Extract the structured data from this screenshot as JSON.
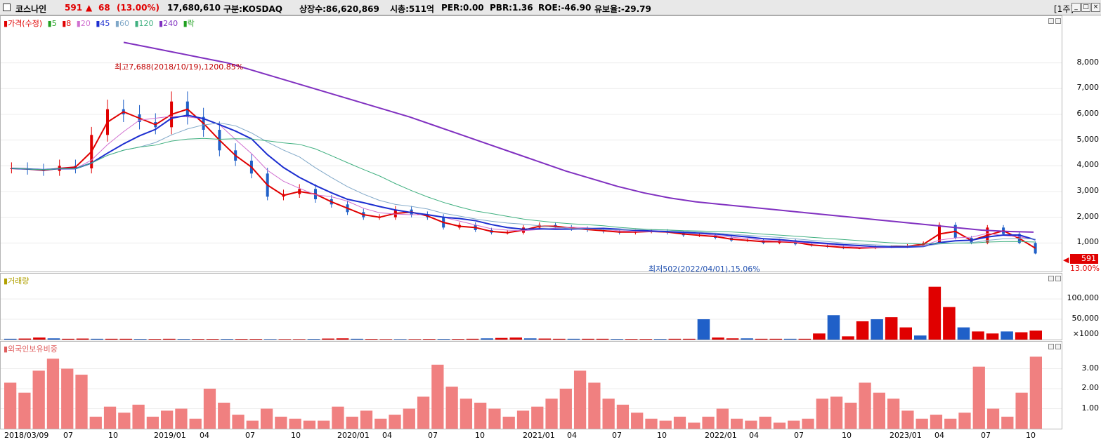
{
  "header": {
    "stock_name": "코스나인",
    "price": "591",
    "change_arrow": "▲",
    "change": "68",
    "change_pct": "(13.00%)",
    "volume": "17,680,610",
    "market": "구분:KOSDAQ",
    "shares": "상장수:86,620,869",
    "market_cap": "시총:511억",
    "per": "PER:0.00",
    "pbr": "PBR:1.36",
    "roe": "ROE:-46.90",
    "float": "유보율:-29.79",
    "period": "[1주]",
    "btn_min": "_",
    "btn_max": "□",
    "btn_close": "×"
  },
  "colors": {
    "up": "#e00000",
    "down": "#2060c8",
    "ma5": "#20a020",
    "ma8": "#e00000",
    "ma20": "#d070d0",
    "ma45": "#1c2ed0",
    "ma60": "#80a8c8",
    "ma120": "#40b080",
    "ma240": "#8030c0",
    "foreign": "#f08080"
  },
  "price_legend": {
    "price": "가격(수정)",
    "ma5": "5",
    "ma8": "8",
    "ma20": "20",
    "ma45": "45",
    "ma60": "60",
    "ma120": "120",
    "ma240": "240",
    "fall": "락"
  },
  "annotations": {
    "high": "최고7,688(2018/10/19),1200.85%",
    "low": "최저502(2022/04/01),15.06%"
  },
  "price_badge": {
    "value": "591",
    "pct": "13.00%"
  },
  "volume_legend": "거래량",
  "foreign_legend": "외국인보유비중",
  "chart_data": [
    {
      "type": "candlestick",
      "ylim": [
        0,
        9000
      ],
      "yticks": [
        "1,000",
        "2,000",
        "3,000",
        "4,000",
        "5,000",
        "6,000",
        "7,000",
        "8,000"
      ],
      "ytick_values": [
        1000,
        2000,
        3000,
        4000,
        5000,
        6000,
        7000,
        8000
      ],
      "x_labels": [
        "2018/03/09",
        "07",
        "10",
        "2019/01",
        "04",
        "07",
        "10",
        "2020/01",
        "04",
        "07",
        "10",
        "2021/01",
        "04",
        "07",
        "10",
        "2022/01",
        "04",
        "07",
        "10",
        "2023/01",
        "04",
        "07",
        "10"
      ],
      "series_close": [
        3900,
        3850,
        3800,
        4000,
        3900,
        5200,
        6200,
        6000,
        5700,
        5500,
        6500,
        5900,
        5400,
        4600,
        4200,
        3700,
        2800,
        2900,
        3100,
        2700,
        2500,
        2200,
        2000,
        2000,
        2300,
        2100,
        2000,
        1600,
        1700,
        1500,
        1400,
        1400,
        1600,
        1700,
        1600,
        1550,
        1500,
        1450,
        1400,
        1450,
        1450,
        1400,
        1300,
        1300,
        1200,
        1100,
        1100,
        1000,
        1100,
        950,
        900,
        850,
        800,
        800,
        850,
        850,
        900,
        1000,
        1700,
        1200,
        1000,
        1600,
        1350,
        1000,
        591
      ],
      "ma240": [
        8800,
        8600,
        8400,
        8200,
        8000,
        7700,
        7400,
        7100,
        6800,
        6500,
        6200,
        5900,
        5550,
        5200,
        4850,
        4500,
        4150,
        3800,
        3500,
        3200,
        2950,
        2750,
        2600,
        2500,
        2400,
        2300,
        2200,
        2100,
        2000,
        1900,
        1800,
        1700,
        1600,
        1500,
        1450,
        1420
      ]
    },
    {
      "type": "bar",
      "ylabel": "거래량",
      "ytick_labels": [
        "100,000",
        "50,000",
        "×1000"
      ],
      "ytick_values": [
        100000,
        50000,
        0
      ],
      "ylim": [
        0,
        145000
      ],
      "values": [
        2000,
        2500,
        5000,
        3000,
        2000,
        2500,
        2000,
        2000,
        2000,
        1500,
        1500,
        2000,
        1500,
        1500,
        1500,
        1500,
        1500,
        1500,
        1200,
        1200,
        1200,
        1500,
        2500,
        3000,
        2000,
        1500,
        1200,
        1200,
        1200,
        1500,
        1500,
        1500,
        2000,
        3000,
        4000,
        5000,
        3000,
        2500,
        2000,
        2000,
        2000,
        2000,
        1500,
        1500,
        1500,
        1500,
        2000,
        2000,
        50000,
        5000,
        3000,
        3000,
        2000,
        2000,
        2000,
        2000,
        15000,
        60000,
        8000,
        45000,
        50000,
        55000,
        30000,
        10000,
        130000,
        80000,
        30000,
        20000,
        15000,
        20000,
        18000,
        22000
      ]
    },
    {
      "type": "bar",
      "ylabel": "외국인보유비중",
      "ytick_labels": [
        "1.00",
        "2.00",
        "3.00"
      ],
      "ytick_values": [
        1,
        2,
        3
      ],
      "ylim": [
        0,
        4
      ],
      "values": [
        2.3,
        1.8,
        2.9,
        3.5,
        3.0,
        2.7,
        0.6,
        1.1,
        0.8,
        1.2,
        0.6,
        0.9,
        1.0,
        0.5,
        2.0,
        1.3,
        0.7,
        0.4,
        1.0,
        0.6,
        0.5,
        0.4,
        0.4,
        1.1,
        0.6,
        0.9,
        0.5,
        0.7,
        1.0,
        1.6,
        3.2,
        2.1,
        1.5,
        1.3,
        1.0,
        0.6,
        0.9,
        1.1,
        1.5,
        2.0,
        2.9,
        2.3,
        1.5,
        1.2,
        0.8,
        0.5,
        0.4,
        0.6,
        0.3,
        0.6,
        1.0,
        0.5,
        0.4,
        0.6,
        0.3,
        0.4,
        0.5,
        1.5,
        1.6,
        1.3,
        2.3,
        1.8,
        1.5,
        0.9,
        0.5,
        0.7,
        0.5,
        0.8,
        3.1,
        1.0,
        0.6,
        1.8,
        3.6
      ]
    }
  ]
}
